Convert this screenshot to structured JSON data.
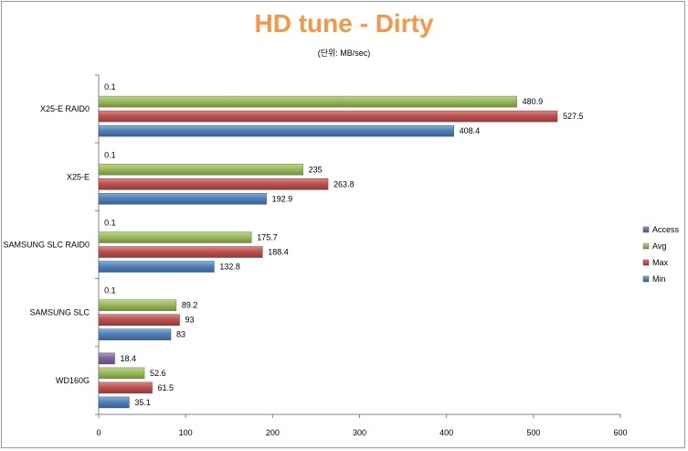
{
  "chart_data": {
    "type": "bar",
    "orientation": "horizontal",
    "title": "HD tune - Dirty",
    "subtitle": "(단위: MB/sec)",
    "categories": [
      "X25-E RAID0",
      "X25-E",
      "SAMSUNG SLC RAID0",
      "SAMSUNG SLC",
      "WD160G"
    ],
    "series": [
      {
        "name": "Access",
        "color": "#8064a2",
        "values": [
          0.1,
          0.1,
          0.1,
          0.1,
          18.4
        ]
      },
      {
        "name": "Avg",
        "color": "#9bbb59",
        "values": [
          480.9,
          235,
          175.7,
          89.2,
          52.6
        ]
      },
      {
        "name": "Max",
        "color": "#c0504d",
        "values": [
          527.5,
          263.8,
          188.4,
          93,
          61.5
        ]
      },
      {
        "name": "Min",
        "color": "#4f81bd",
        "values": [
          408.4,
          192.9,
          132.8,
          83,
          35.1
        ]
      }
    ],
    "xlim": [
      0,
      600
    ],
    "xticks": [
      0,
      100,
      200,
      300,
      400,
      500,
      600
    ],
    "grid": false,
    "legend_position": "right",
    "title_color": "#f79646"
  }
}
